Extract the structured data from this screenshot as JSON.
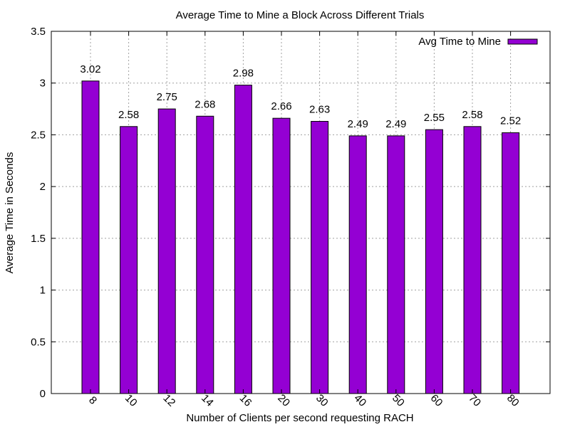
{
  "chart_data": {
    "type": "bar",
    "title": "Average Time to Mine a Block Across Different Trials",
    "xlabel": "Number of Clients per second requesting RACH",
    "ylabel": "Average Time in Seconds",
    "categories": [
      "8",
      "10",
      "12",
      "14",
      "16",
      "20",
      "30",
      "40",
      "50",
      "60",
      "70",
      "80"
    ],
    "series": [
      {
        "name": "Avg Time to Mine",
        "values": [
          3.02,
          2.58,
          2.75,
          2.68,
          2.98,
          2.66,
          2.63,
          2.49,
          2.49,
          2.55,
          2.58,
          2.52
        ],
        "color": "#9400d3"
      }
    ],
    "data_labels": [
      "3.02",
      "2.58",
      "2.75",
      "2.68",
      "2.98",
      "2.66",
      "2.63",
      "2.49",
      "2.49",
      "2.55",
      "2.58",
      "2.52"
    ],
    "ylim": [
      0,
      3.5
    ],
    "yticks": [
      0,
      0.5,
      1,
      1.5,
      2,
      2.5,
      3,
      3.5
    ],
    "ytick_labels": [
      "0",
      "0.5",
      "1",
      "1.5",
      "2",
      "2.5",
      "3",
      "3.5"
    ],
    "grid": true,
    "legend_position": "top-right"
  }
}
